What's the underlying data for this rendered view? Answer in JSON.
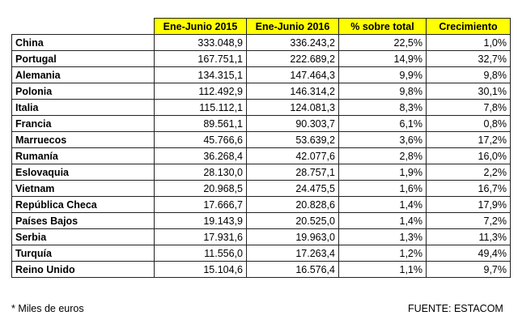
{
  "headers": [
    "Ene-Junio 2015",
    "Ene-Junio 2016",
    "% sobre total",
    "Crecimiento"
  ],
  "rows": [
    {
      "country": "China",
      "y2015": "333.048,9",
      "y2016": "336.243,2",
      "share": "22,5%",
      "growth": "1,0%"
    },
    {
      "country": "Portugal",
      "y2015": "167.751,1",
      "y2016": "222.689,2",
      "share": "14,9%",
      "growth": "32,7%"
    },
    {
      "country": "Alemania",
      "y2015": "134.315,1",
      "y2016": "147.464,3",
      "share": "9,9%",
      "growth": "9,8%"
    },
    {
      "country": "Polonia",
      "y2015": "112.492,9",
      "y2016": "146.314,2",
      "share": "9,8%",
      "growth": "30,1%"
    },
    {
      "country": "Italia",
      "y2015": "115.112,1",
      "y2016": "124.081,3",
      "share": "8,3%",
      "growth": "7,8%"
    },
    {
      "country": "Francia",
      "y2015": "89.561,1",
      "y2016": "90.303,7",
      "share": "6,1%",
      "growth": "0,8%"
    },
    {
      "country": "Marruecos",
      "y2015": "45.766,6",
      "y2016": "53.639,2",
      "share": "3,6%",
      "growth": "17,2%"
    },
    {
      "country": "Rumanía",
      "y2015": "36.268,4",
      "y2016": "42.077,6",
      "share": "2,8%",
      "growth": "16,0%"
    },
    {
      "country": "Eslovaquia",
      "y2015": "28.130,0",
      "y2016": "28.757,1",
      "share": "1,9%",
      "growth": "2,2%"
    },
    {
      "country": "Vietnam",
      "y2015": "20.968,5",
      "y2016": "24.475,5",
      "share": "1,6%",
      "growth": "16,7%"
    },
    {
      "country": "República Checa",
      "y2015": "17.666,7",
      "y2016": "20.828,6",
      "share": "1,4%",
      "growth": "17,9%"
    },
    {
      "country": "Países Bajos",
      "y2015": "19.143,9",
      "y2016": "20.525,0",
      "share": "1,4%",
      "growth": "7,2%"
    },
    {
      "country": "Serbia",
      "y2015": "17.931,6",
      "y2016": "19.963,0",
      "share": "1,3%",
      "growth": "11,3%"
    },
    {
      "country": "Turquía",
      "y2015": "11.556,0",
      "y2016": "17.263,4",
      "share": "1,2%",
      "growth": "49,4%"
    },
    {
      "country": "Reino Unido",
      "y2015": "15.104,6",
      "y2016": "16.576,4",
      "share": "1,1%",
      "growth": "9,7%"
    }
  ],
  "footnote": "* Miles de euros",
  "source": "FUENTE:  ESTACOM",
  "colors": {
    "header_background": "#ffff00",
    "border": "#222222"
  }
}
